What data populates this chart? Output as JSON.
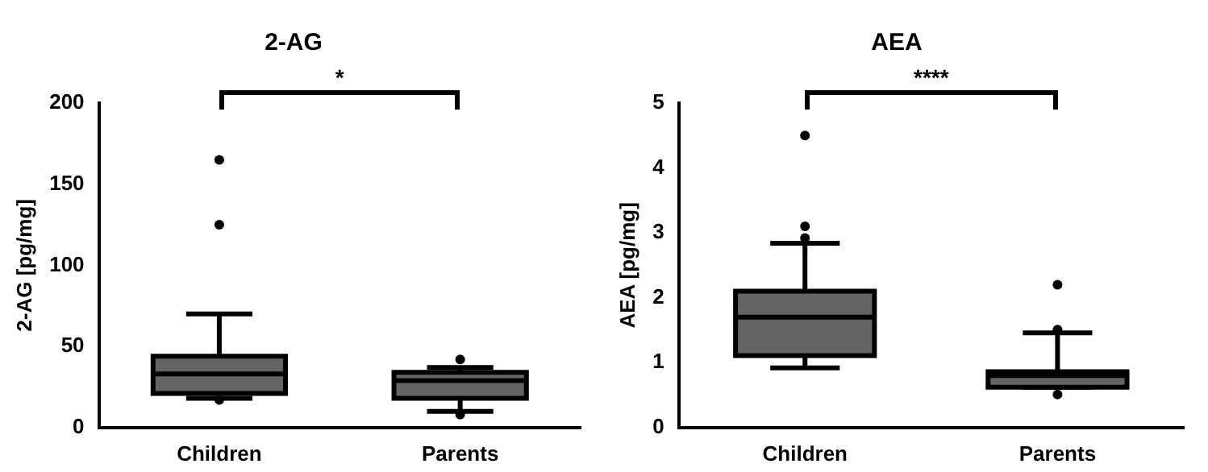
{
  "chart_data": [
    {
      "type": "box",
      "title": "2-AG",
      "ylabel": "2-AG [pg/mg]",
      "categories": [
        "Children",
        "Parents"
      ],
      "color": "#646464",
      "ylim": [
        0,
        200
      ],
      "yticks": [
        0,
        50,
        100,
        150,
        200
      ],
      "grid": false,
      "annotations": [
        "*"
      ],
      "boxes": [
        {
          "low": 18,
          "q1": 21,
          "median": 33,
          "q3": 44,
          "high": 70,
          "outliers": [
            165,
            125,
            17
          ]
        },
        {
          "low": 10,
          "q1": 18,
          "median": 29,
          "q3": 34,
          "high": 37,
          "outliers": [
            42,
            8
          ]
        }
      ]
    },
    {
      "type": "box",
      "title": "AEA",
      "ylabel": "AEA [pg/mg]",
      "categories": [
        "Children",
        "Parents"
      ],
      "color": "#646464",
      "ylim": [
        0,
        5
      ],
      "yticks": [
        0,
        1,
        2,
        3,
        4,
        5
      ],
      "grid": false,
      "annotations": [
        "****"
      ],
      "boxes": [
        {
          "low": 0.92,
          "q1": 1.11,
          "median": 1.7,
          "q3": 2.1,
          "high": 2.84,
          "outliers": [
            4.5,
            3.1,
            2.92
          ]
        },
        {
          "low": 0.62,
          "q1": 0.62,
          "median": 0.8,
          "q3": 0.86,
          "high": 1.46,
          "outliers": [
            2.2,
            1.51,
            0.51
          ]
        }
      ]
    }
  ]
}
